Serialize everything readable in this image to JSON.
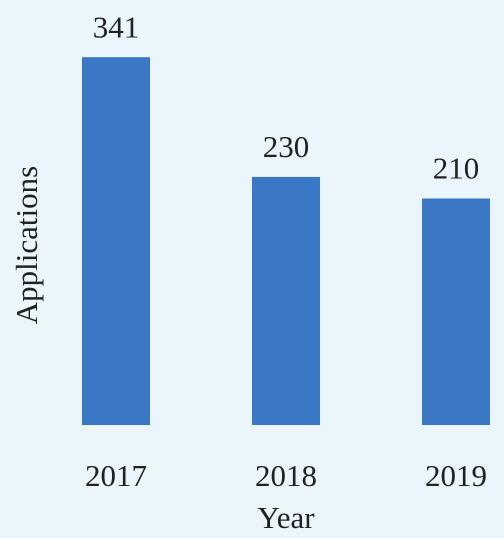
{
  "chart_data": {
    "type": "bar",
    "x_label": "Year",
    "y_label": "Applications",
    "categories": [
      "2017",
      "2018",
      "2019"
    ],
    "values": [
      341,
      230,
      210
    ],
    "color": "#3a78c6",
    "ylim": [
      0,
      394
    ]
  }
}
